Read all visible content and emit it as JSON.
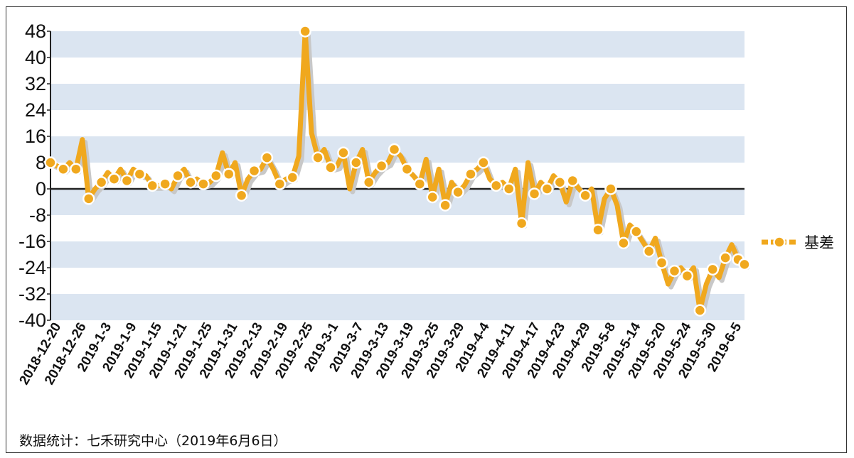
{
  "chart_data": {
    "type": "line",
    "title": "",
    "xlabel": "",
    "ylabel": "",
    "ylim": [
      -40,
      48
    ],
    "yticks": [
      48,
      40,
      32,
      24,
      16,
      8,
      0,
      -8,
      -16,
      -24,
      -32,
      -40
    ],
    "xticks": [
      "2018-12-20",
      "2018-12-26",
      "2019-1-3",
      "2019-1-9",
      "2019-1-15",
      "2019-1-21",
      "2019-1-25",
      "2019-1-31",
      "2019-2-13",
      "2019-2-19",
      "2019-2-25",
      "2019-3-1",
      "2019-3-7",
      "2019-3-13",
      "2019-3-19",
      "2019-3-25",
      "2019-3-29",
      "2019-4-4",
      "2019-4-11",
      "2019-4-17",
      "2019-4-23",
      "2019-4-29",
      "2019-5-8",
      "2019-5-14",
      "2019-5-20",
      "2019-5-24",
      "2019-5-30",
      "2019-6-5"
    ],
    "legend": {
      "position": "right"
    },
    "grid": "alternating horizontal bands",
    "series": [
      {
        "name": "基差",
        "color": "#f0a81e",
        "shadow_color": "#c8c8c8",
        "marker_fill": "#f0a81e",
        "marker_edge": "#ffffff",
        "values": [
          8,
          7,
          6,
          8,
          6,
          15,
          -3,
          0,
          2,
          5,
          3,
          6,
          2.5,
          6,
          4.5,
          4,
          1,
          1,
          1.5,
          0,
          4,
          6,
          2,
          3,
          1.5,
          2,
          4,
          11,
          4.5,
          8,
          -2,
          3,
          5.5,
          6,
          9.5,
          6,
          1.5,
          3,
          3.5,
          10,
          48,
          17,
          9.5,
          12,
          6.5,
          7,
          11,
          0,
          8,
          12,
          2,
          5,
          7,
          8,
          12,
          10,
          6,
          4,
          1.5,
          9,
          -2.5,
          6,
          -5,
          2,
          -1,
          1,
          4.5,
          6,
          8,
          3,
          1,
          2,
          0,
          6,
          -10.5,
          8,
          -1.5,
          2,
          0,
          4,
          2,
          -4,
          2.5,
          0,
          -2,
          0,
          -12.5,
          -3,
          0,
          -5,
          -16.5,
          -11,
          -13,
          -16,
          -19,
          -15,
          -22.5,
          -29,
          -25,
          -24,
          -26.5,
          -24,
          -37,
          -29,
          -24.5,
          -27,
          -21,
          -17,
          -21.5,
          -23
        ]
      }
    ],
    "source_note": "数据统计：七禾研究中心（2019年6月6日）"
  },
  "colors": {
    "band": "#dbe5f1",
    "zero_line": "#222222",
    "axis": "#222222"
  }
}
